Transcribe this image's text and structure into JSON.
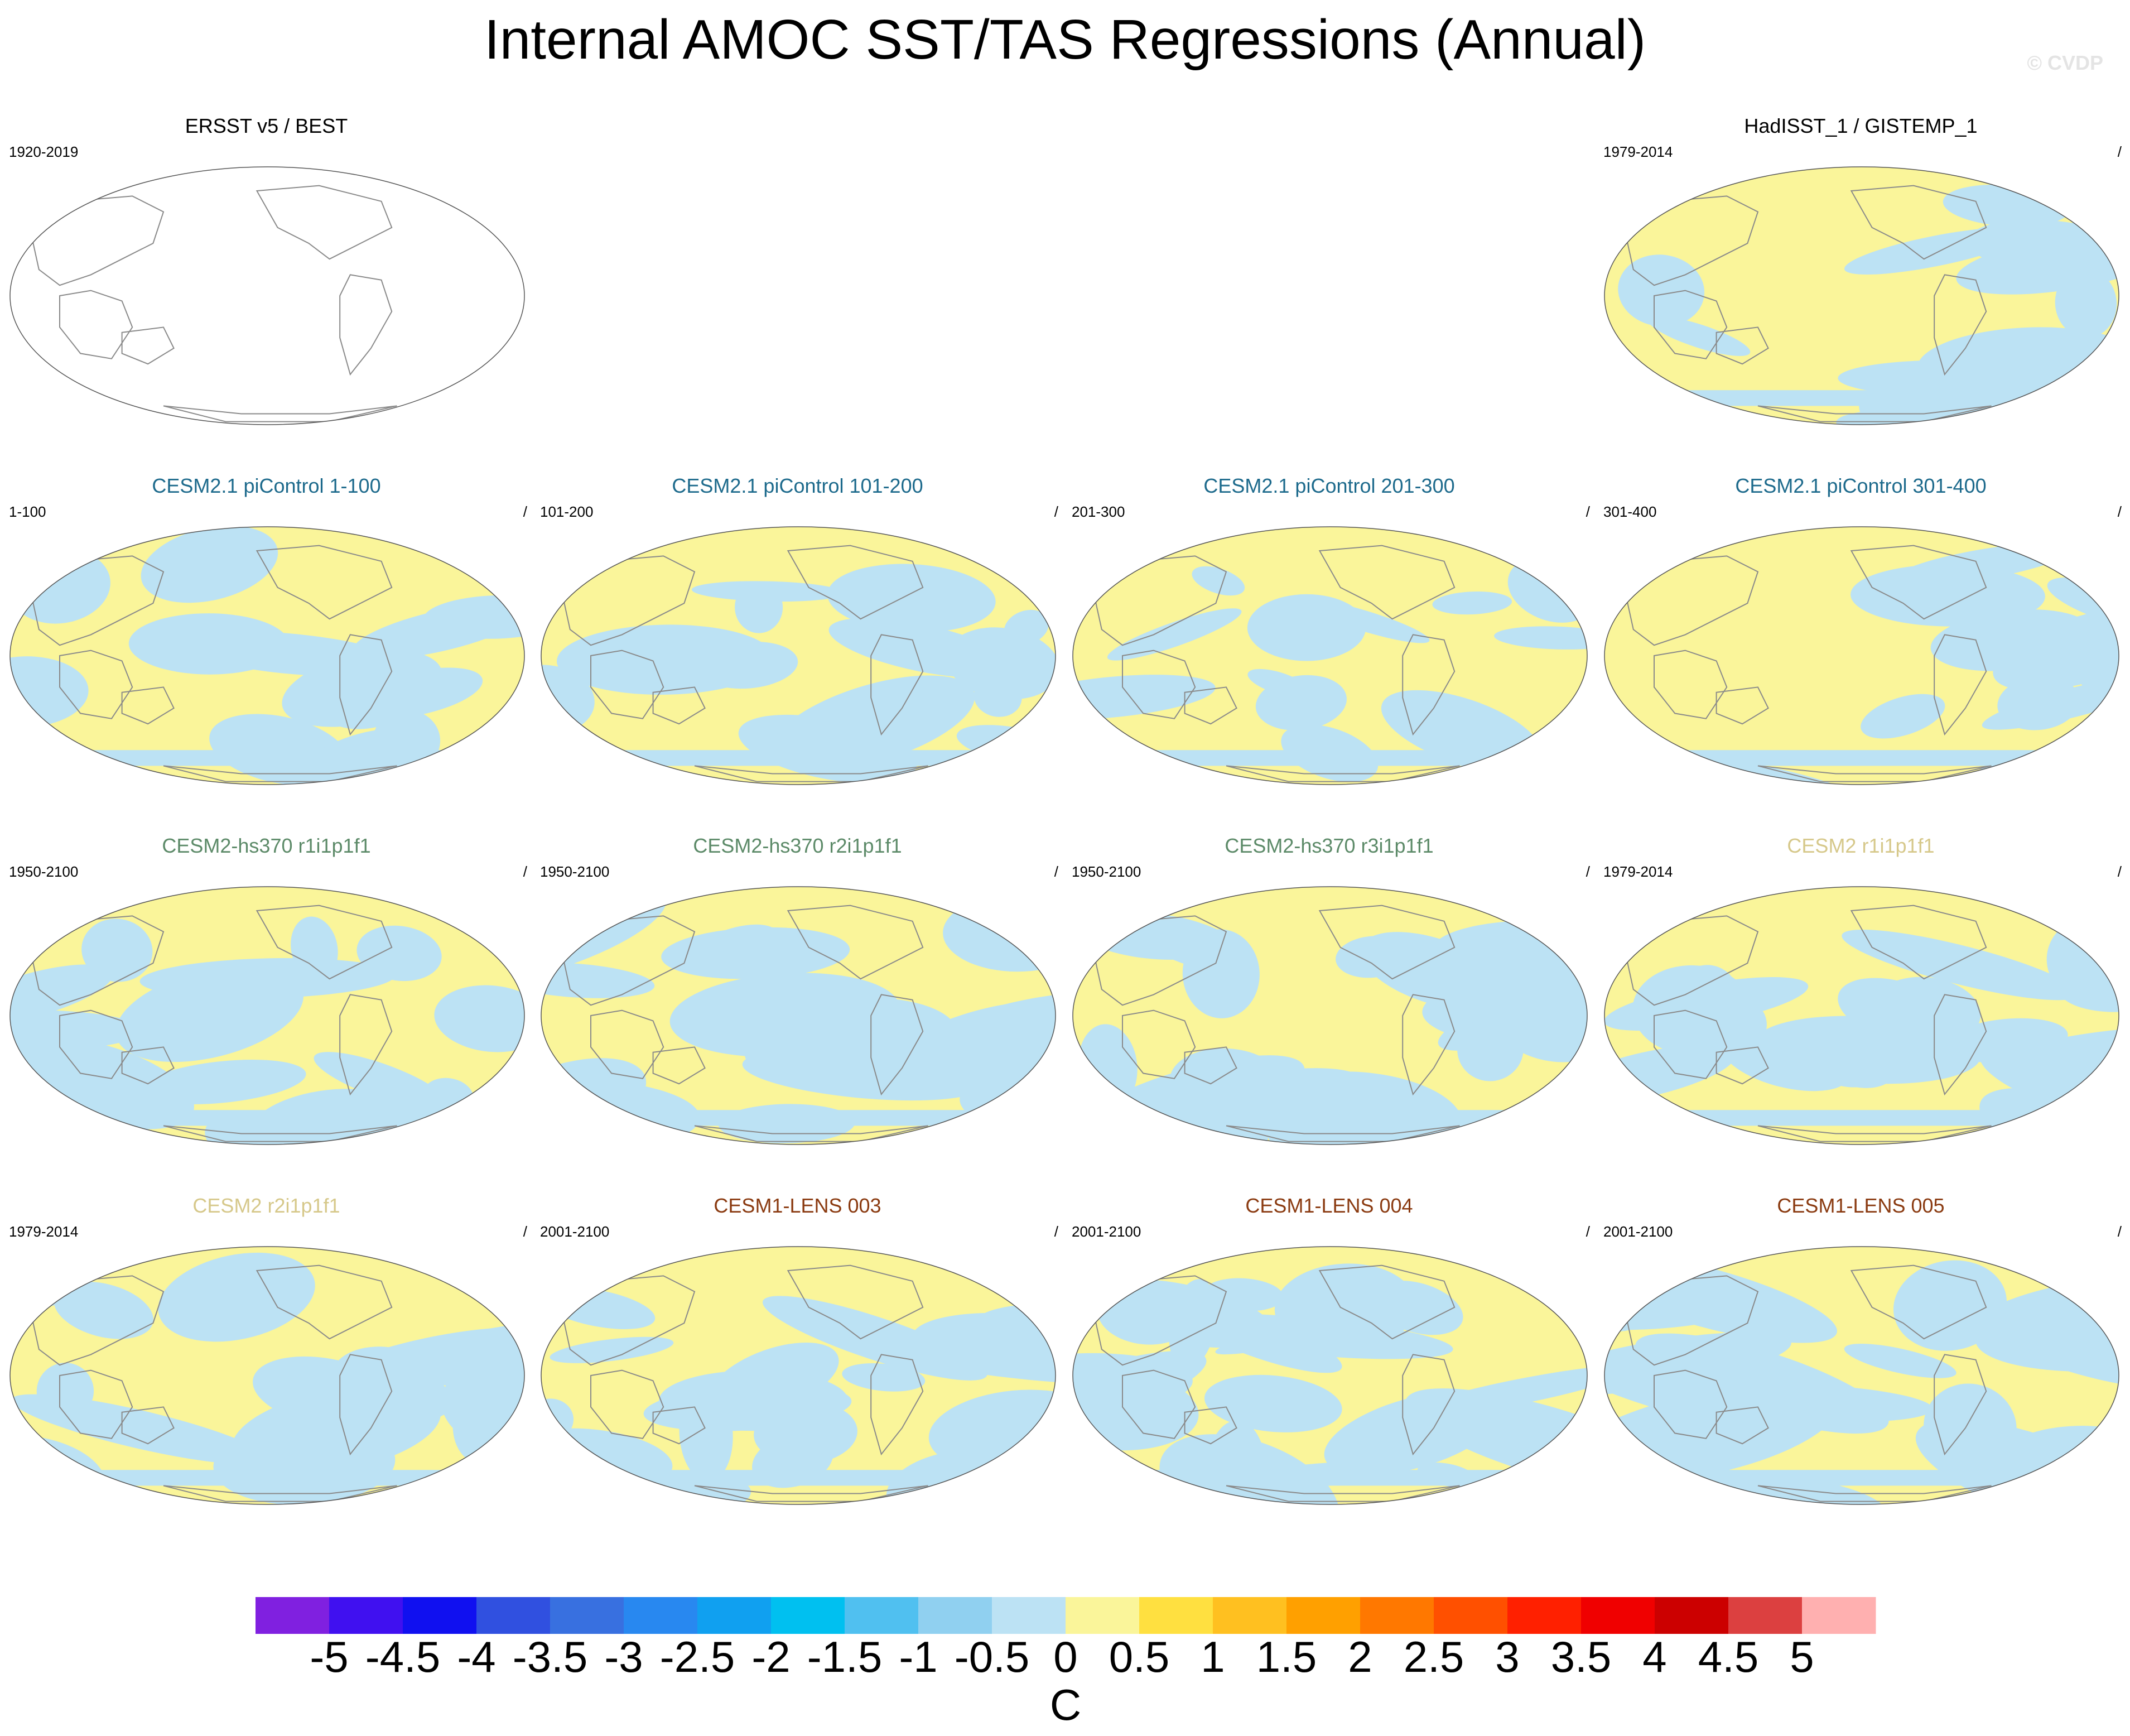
{
  "title": "Internal AMOC SST/TAS Regressions (Annual)",
  "watermark": "© CVDP",
  "chart_data": {
    "type": "map-panels",
    "title": "Internal AMOC SST/TAS Regressions (Annual)",
    "variable": "SST/TAS regression onto AMOC",
    "units": "C",
    "colorbar": {
      "levels": [
        "-5",
        "-4.5",
        "-4",
        "-3.5",
        "-3",
        "-2.5",
        "-2",
        "-1.5",
        "-1",
        "-0.5",
        "0",
        "0.5",
        "1",
        "1.5",
        "2",
        "2.5",
        "3",
        "3.5",
        "4",
        "4.5",
        "5"
      ],
      "colors": [
        "#8020E0",
        "#4010F0",
        "#1010F0",
        "#3050E0",
        "#3870E0",
        "#2888F0",
        "#10A0F0",
        "#00C0F0",
        "#50C0F0",
        "#90D0F0",
        "#BCE2F4",
        "#FAF59A",
        "#FFE040",
        "#FFC020",
        "#FFA000",
        "#FF7800",
        "#FF5000",
        "#FF2000",
        "#F00000",
        "#CC0000",
        "#DC4040",
        "#FFB0B0"
      ]
    },
    "panels": [
      {
        "title": "ERSST v5 / BEST",
        "period": "1920-2019",
        "title_color": "#000000",
        "blank": true
      },
      {
        "title": "HadISST_1 / GISTEMP_1",
        "period": "1979-2014",
        "title_color": "#000000",
        "slash": "/",
        "cool_fraction": 0.25
      },
      {
        "title": "CESM2.1 piControl 1-100",
        "period": "1-100",
        "title_color": "#1D6A8C",
        "slash": "/",
        "cool_fraction": 0.25
      },
      {
        "title": "CESM2.1 piControl 101-200",
        "period": "101-200",
        "title_color": "#1D6A8C",
        "slash": "/",
        "cool_fraction": 0.27
      },
      {
        "title": "CESM2.1 piControl 201-300",
        "period": "201-300",
        "title_color": "#1D6A8C",
        "slash": "/",
        "cool_fraction": 0.25
      },
      {
        "title": "CESM2.1 piControl 301-400",
        "period": "301-400",
        "title_color": "#1D6A8C",
        "slash": "/",
        "cool_fraction": 0.2
      },
      {
        "title": "CESM2-hs370 r1i1p1f1",
        "period": "1950-2100",
        "title_color": "#5C8A68",
        "slash": "/",
        "cool_fraction": 0.4
      },
      {
        "title": "CESM2-hs370 r2i1p1f1",
        "period": "1950-2100",
        "title_color": "#5C8A68",
        "slash": "/",
        "cool_fraction": 0.45
      },
      {
        "title": "CESM2-hs370 r3i1p1f1",
        "period": "1950-2100",
        "title_color": "#5C8A68",
        "slash": "/",
        "cool_fraction": 0.45
      },
      {
        "title": "CESM2 r1i1p1f1",
        "period": "1979-2014",
        "title_color": "#D6C88A",
        "slash": "/",
        "cool_fraction": 0.5
      },
      {
        "title": "CESM2 r2i1p1f1",
        "period": "1979-2014",
        "title_color": "#D6C88A",
        "slash": "/",
        "cool_fraction": 0.45
      },
      {
        "title": "CESM1-LENS 003",
        "period": "2001-2100",
        "title_color": "#8A3A10",
        "slash": "/",
        "cool_fraction": 0.55
      },
      {
        "title": "CESM1-LENS 004",
        "period": "2001-2100",
        "title_color": "#8A3A10",
        "slash": "/",
        "cool_fraction": 0.6
      },
      {
        "title": "CESM1-LENS 005",
        "period": "2001-2100",
        "title_color": "#8A3A10",
        "slash": "/",
        "cool_fraction": 0.5
      }
    ]
  }
}
